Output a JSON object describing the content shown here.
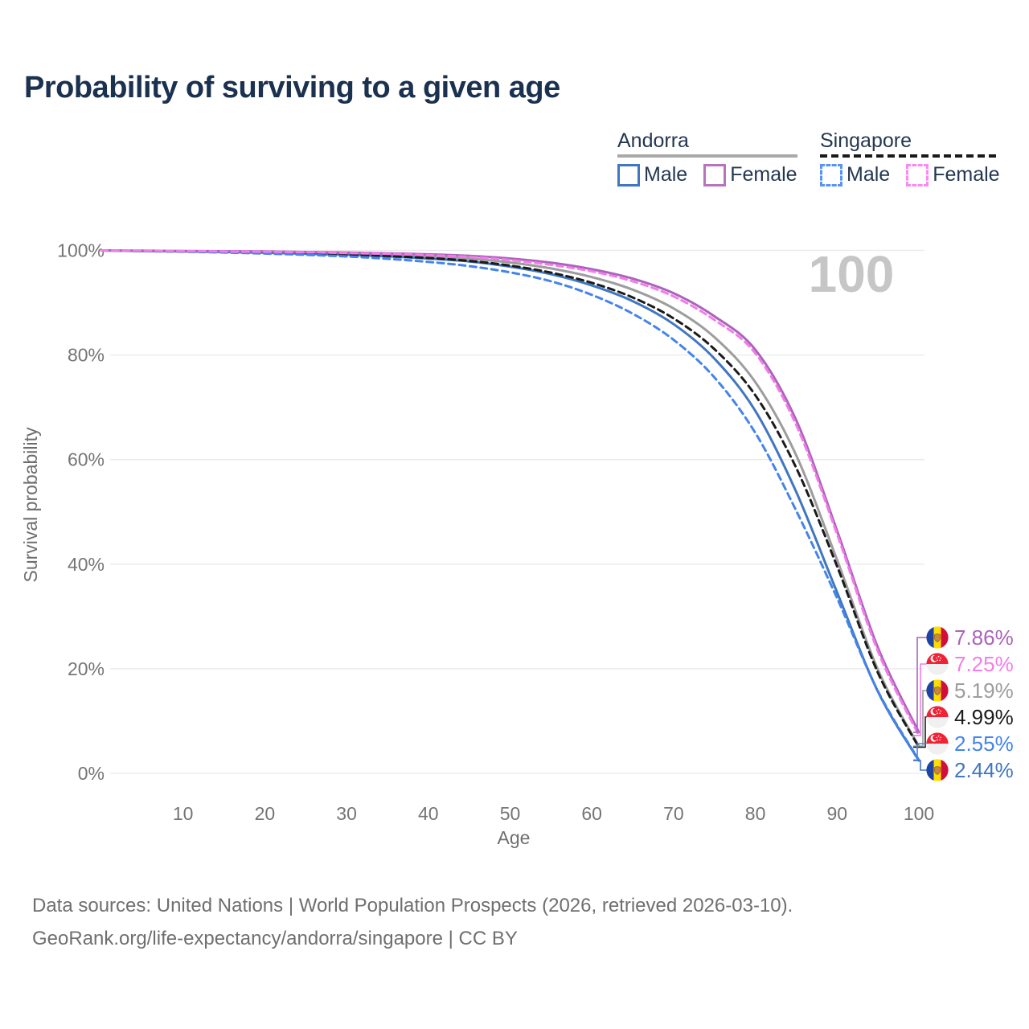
{
  "title": "Probability of surviving to a given age",
  "watermark": "100",
  "legend": {
    "groups": [
      {
        "name": "Andorra",
        "line_style": "solid",
        "underline_color": "#a9a9a9",
        "items": [
          {
            "label": "Male",
            "color": "#4076c2",
            "dashed": false
          },
          {
            "label": "Female",
            "color": "#b873bd",
            "dashed": false
          }
        ]
      },
      {
        "name": "Singapore",
        "line_style": "dashed",
        "underline_color": "#1a1a1a",
        "items": [
          {
            "label": "Male",
            "color": "#5b93f5",
            "dashed": true
          },
          {
            "label": "Female",
            "color": "#fb8af0",
            "dashed": true
          }
        ]
      }
    ]
  },
  "chart_data": {
    "type": "line",
    "title": "Probability of surviving to a given age",
    "xlabel": "Age",
    "ylabel": "Survival probability",
    "xlim": [
      0,
      100
    ],
    "ylim": [
      0,
      100
    ],
    "grid": "horizontal-only",
    "x_ticks": [
      10,
      20,
      30,
      40,
      50,
      60,
      70,
      80,
      90,
      100
    ],
    "y_ticks": [
      {
        "label": "100%",
        "value": 100
      },
      {
        "label": "80%",
        "value": 80
      },
      {
        "label": "60%",
        "value": 60
      },
      {
        "label": "40%",
        "value": 40
      },
      {
        "label": "20%",
        "value": 20
      },
      {
        "label": "0%",
        "value": 0
      }
    ],
    "x": [
      0,
      5,
      10,
      15,
      20,
      25,
      30,
      35,
      40,
      45,
      50,
      55,
      60,
      65,
      70,
      75,
      80,
      85,
      90,
      95,
      100
    ],
    "series": [
      {
        "name": "Andorra Female",
        "country": "Andorra",
        "group": "Female",
        "line_style": "solid",
        "color": "#aa64bb",
        "end_label": "7.86%",
        "end_value": 7.86,
        "values": [
          100,
          99.95,
          99.9,
          99.85,
          99.8,
          99.7,
          99.6,
          99.45,
          99.25,
          98.95,
          98.45,
          97.65,
          96.4,
          94.6,
          91.8,
          87.4,
          81.0,
          67.5,
          46.4,
          24.0,
          7.86
        ]
      },
      {
        "name": "Singapore Female",
        "country": "Singapore",
        "group": "Female",
        "line_style": "dashed",
        "color": "#f47ce9",
        "end_label": "7.25%",
        "end_value": 7.25,
        "values": [
          100,
          99.95,
          99.9,
          99.8,
          99.75,
          99.65,
          99.5,
          99.35,
          99.1,
          98.75,
          98.15,
          97.25,
          96.0,
          94.1,
          91.2,
          86.7,
          80.3,
          66.6,
          45.7,
          23.3,
          7.25
        ]
      },
      {
        "name": "Andorra Both sexes",
        "country": "Andorra",
        "group": "Both sexes",
        "line_style": "solid",
        "color": "#9d9d9d",
        "end_label": "5.19%",
        "end_value": 5.19,
        "values": [
          100,
          99.9,
          99.85,
          99.8,
          99.7,
          99.55,
          99.4,
          99.2,
          98.9,
          98.45,
          97.7,
          96.55,
          94.9,
          92.5,
          88.9,
          83.4,
          74.8,
          60.8,
          40.8,
          19.8,
          5.19
        ]
      },
      {
        "name": "Singapore Both sexes",
        "country": "Singapore",
        "group": "Both sexes",
        "line_style": "dashed",
        "color": "#1b1b1b",
        "end_label": "4.99%",
        "end_value": 4.99,
        "values": [
          100,
          99.9,
          99.85,
          99.75,
          99.6,
          99.45,
          99.25,
          98.95,
          98.55,
          98.0,
          97.1,
          95.75,
          93.8,
          91.0,
          87.0,
          81.1,
          72.3,
          58.4,
          39.6,
          19.2,
          4.99
        ]
      },
      {
        "name": "Singapore Male",
        "country": "Singapore",
        "group": "Male",
        "line_style": "dashed",
        "color": "#4484ec",
        "end_label": "2.55%",
        "end_value": 2.55,
        "values": [
          100,
          99.85,
          99.75,
          99.6,
          99.4,
          99.15,
          98.85,
          98.4,
          97.8,
          97.0,
          95.8,
          94.1,
          91.5,
          87.9,
          82.9,
          75.7,
          65.1,
          50.2,
          33.5,
          15.7,
          2.55
        ]
      },
      {
        "name": "Andorra Male",
        "country": "Andorra",
        "group": "Male",
        "line_style": "solid",
        "color": "#4076c2",
        "end_label": "2.44%",
        "end_value": 2.44,
        "values": [
          100,
          99.9,
          99.8,
          99.7,
          99.55,
          99.35,
          99.15,
          98.85,
          98.45,
          97.9,
          96.9,
          95.45,
          93.3,
          90.3,
          85.9,
          79.3,
          69.3,
          53.8,
          34.6,
          15.6,
          2.44
        ]
      }
    ]
  },
  "footer": {
    "lines": [
      "Data sources: United Nations | World Population Prospects (2026, retrieved 2026-03-10).",
      "GeoRank.org/life-expectancy/andorra/singapore | CC BY"
    ]
  }
}
